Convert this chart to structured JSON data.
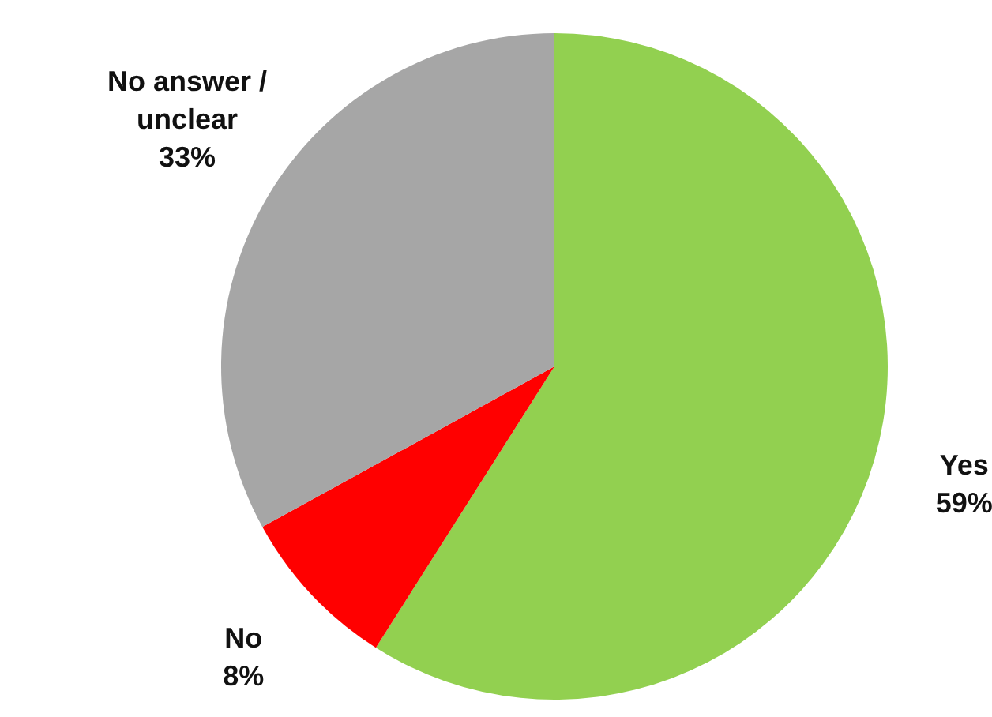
{
  "chart_data": {
    "type": "pie",
    "categories": [
      "Yes",
      "No",
      "No answer / unclear"
    ],
    "values": [
      59,
      8,
      33
    ],
    "colors": [
      "#92d050",
      "#ff0000",
      "#a6a6a6"
    ],
    "value_labels": [
      "59%",
      "8%",
      "33%"
    ]
  }
}
